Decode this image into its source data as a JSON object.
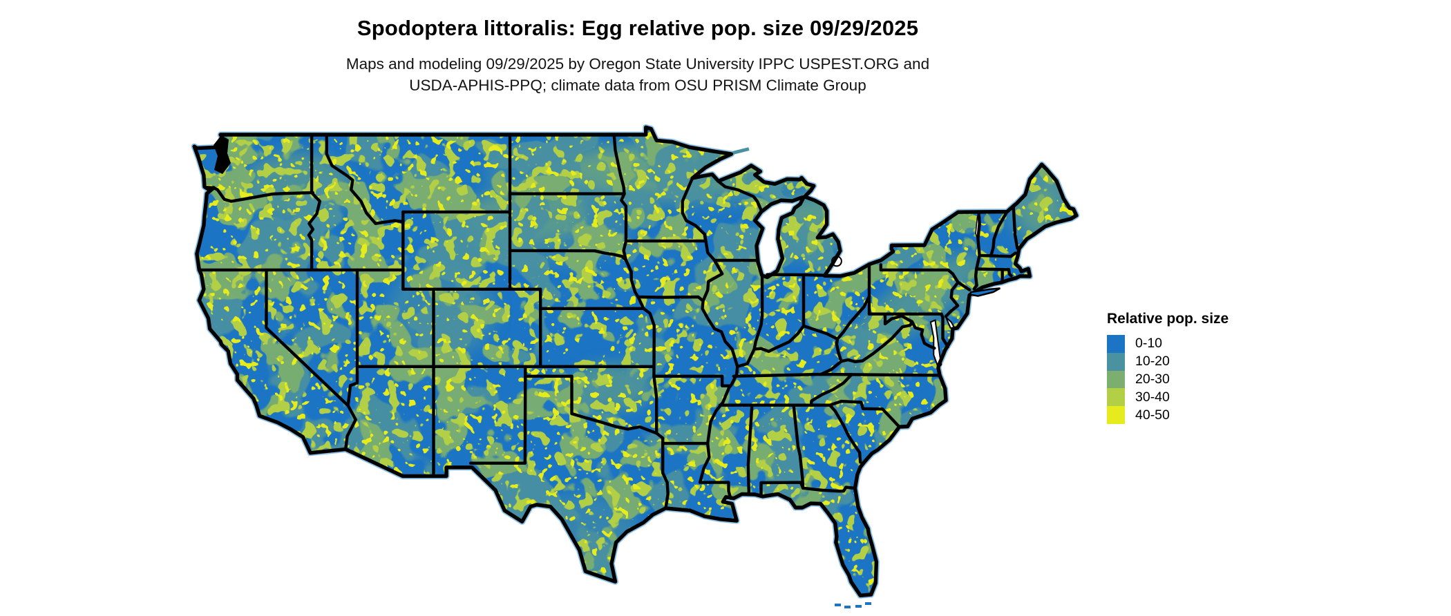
{
  "title": "Spodoptera littoralis: Egg relative pop. size 09/29/2025",
  "subtitle": {
    "line1": "Maps and modeling 09/29/2025 by Oregon State University IPPC USPEST.ORG and",
    "line2": "USDA-APHIS-PPQ; climate data from OSU PRISM Climate Group"
  },
  "legend": {
    "title": "Relative pop. size",
    "items": [
      {
        "label": "0-10",
        "color": "#1B74C4"
      },
      {
        "label": "10-20",
        "color": "#4B92A0"
      },
      {
        "label": "20-30",
        "color": "#7CAF6F"
      },
      {
        "label": "30-40",
        "color": "#B3CF45"
      },
      {
        "label": "40-50",
        "color": "#E6EB1D"
      }
    ]
  },
  "map": {
    "region": "Continental United States",
    "kind": "raster choropleth of egg relative population size",
    "colors": {
      "background": "#FFFFFF",
      "state_border": "#000000",
      "coast_fringe": "#7FB9E2",
      "lake_fill": "#FFFFFF"
    }
  }
}
